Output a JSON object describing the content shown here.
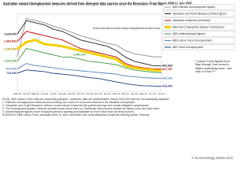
{
  "chart_data": {
    "type": "line",
    "title": "Australian variant Unemployment measures derived from divergent data sources since the Recession. From March 2020 to July 2021",
    "categories": [
      "Mar-20",
      "Apr-20",
      "May-20",
      "Jun-20",
      "Jul-20",
      "Aug-20",
      "Sep-20",
      "Oct-20",
      "Nov-20",
      "Dec-20",
      "Jan-21",
      "Feb-21",
      "Mar-21",
      "Apr-21",
      "May-21",
      "Jun-21",
      "Jul-21"
    ],
    "ylim": [
      300000,
      2100000
    ],
    "series": [
      {
        "name": "ABS Effective Unemployment figures",
        "color": "#9a9a9a",
        "width": 1,
        "values": [
          1100000,
          2000000,
          1950000,
          1900000,
          1820000,
          1760000,
          1680000,
          1600000,
          1540000,
          1480000,
          1420000,
          1380000,
          1250000,
          1180000,
          1140000,
          1110000,
          1100000
        ],
        "value_labels": [
          null,
          null,
          null,
          null,
          null,
          null,
          null,
          null,
          null,
          null,
          null,
          null,
          null,
          null,
          null,
          null,
          null
        ]
      },
      {
        "name": "Jobseeker and Youth Allowance (Other) figures",
        "color": "#222222",
        "width": 0.9,
        "values": [
          1635000,
          1950000,
          1900000,
          1850000,
          1750000,
          1700000,
          1600000,
          1500000,
          1450000,
          1400000,
          1350000,
          1250000,
          1100000,
          1000000,
          950000,
          900000,
          892065
        ],
        "value_labels": [
          "1,635,000",
          null,
          null,
          null,
          null,
          null,
          null,
          null,
          null,
          null,
          null,
          null,
          null,
          null,
          null,
          null,
          "892,065"
        ]
      },
      {
        "name": "Jobseeker recipients (Job Active)",
        "color": "#c00000",
        "width": 0.9,
        "values": [
          1463063,
          1700000,
          1650000,
          1600000,
          1550000,
          1500000,
          1400000,
          1300000,
          1250000,
          1200000,
          1150000,
          1100000,
          950000,
          880000,
          850000,
          830000,
          817157
        ],
        "value_labels": [
          "1,463,063",
          null,
          null,
          null,
          null,
          null,
          null,
          null,
          null,
          null,
          null,
          null,
          null,
          null,
          null,
          null,
          "817,157"
        ]
      },
      {
        "name": "ABS New 'Employment Bypass' Unemployed",
        "color": "#f2cf00",
        "width": 3,
        "values": [
          1284000,
          1450000,
          1500000,
          1400000,
          1380000,
          1350000,
          1300000,
          1250000,
          1200000,
          1150000,
          1100000,
          1050000,
          900000,
          850000,
          820000,
          800000,
          780000
        ],
        "value_labels": [
          "1,284,000",
          null,
          null,
          null,
          null,
          null,
          null,
          null,
          null,
          null,
          null,
          null,
          null,
          null,
          null,
          null,
          null
        ]
      },
      {
        "name": "ABS Underemployed figures",
        "color": "#3a9a3a",
        "width": 0.9,
        "values": [
          1002000,
          1300000,
          1250000,
          1200000,
          1150000,
          1100000,
          1096210,
          1050000,
          1000000,
          980000,
          950000,
          920000,
          850000,
          800000,
          770000,
          750000,
          730000
        ],
        "value_labels": [
          "1,002,000",
          null,
          null,
          null,
          null,
          null,
          "1,096,210",
          null,
          null,
          null,
          null,
          null,
          null,
          null,
          null,
          null,
          null
        ]
      },
      {
        "name": "ABS Labour Force Unemployment",
        "color": "#4f81bd",
        "width": 0.9,
        "values": [
          824460,
          950000,
          900000,
          880000,
          850000,
          820000,
          800000,
          780000,
          760000,
          740000,
          720000,
          700000,
          660000,
          640000,
          620000,
          610000,
          604100
        ],
        "value_labels": [
          "824,460",
          null,
          null,
          null,
          null,
          null,
          null,
          null,
          null,
          null,
          null,
          null,
          null,
          null,
          null,
          null,
          "604,100"
        ]
      },
      {
        "name": "ABS Trend Unemployment",
        "color": "#1f3a7a",
        "width": 0.9,
        "values": [
          723000,
          800000,
          780000,
          760000,
          720000,
          700000,
          680000,
          650000,
          620000,
          600000,
          560000,
          520000,
          480000,
          450000,
          430000,
          425000,
          419000
        ],
        "value_labels": [
          "723,000",
          null,
          null,
          null,
          null,
          null,
          null,
          null,
          null,
          null,
          null,
          null,
          null,
          null,
          null,
          null,
          "419,000"
        ]
      }
    ],
    "annotation": "Zero hours plus ABS's defacto (or 'not-at-work') 'unemployed' combining greater data from the Labour Force survey",
    "side_note": "* Labour Force figures from May through June reveal a higher underlying count - see note 4 in box ***",
    "notes": [
      "NOTE: ABS Labour Force data are seasonally adjusted; Jobseeker data are administrative counts from DSS and are not seasonally adjusted.",
      "1. 'Effective unemployment' adds persons working zero hours for economic reasons to the headline unemployed.",
      "2. Jobseeker and Youth Allowance (Other) counts include recipients with partial earnings and mutual obligation suspensions.",
      "3. The 'Employment Bypass' measure includes those stood down on JobKeeper and persons outside the labour force who want work.",
      "4. Underemployed figures cover employed persons wanting and available for more hours than currently worked.",
      "SOURCES: ABS Labour Force, Australia (6202.0); DSS JobSeeker and Youth Allowance recipients monthly profile; Treasury."
    ],
    "credit": "© Economology Media 2021"
  }
}
